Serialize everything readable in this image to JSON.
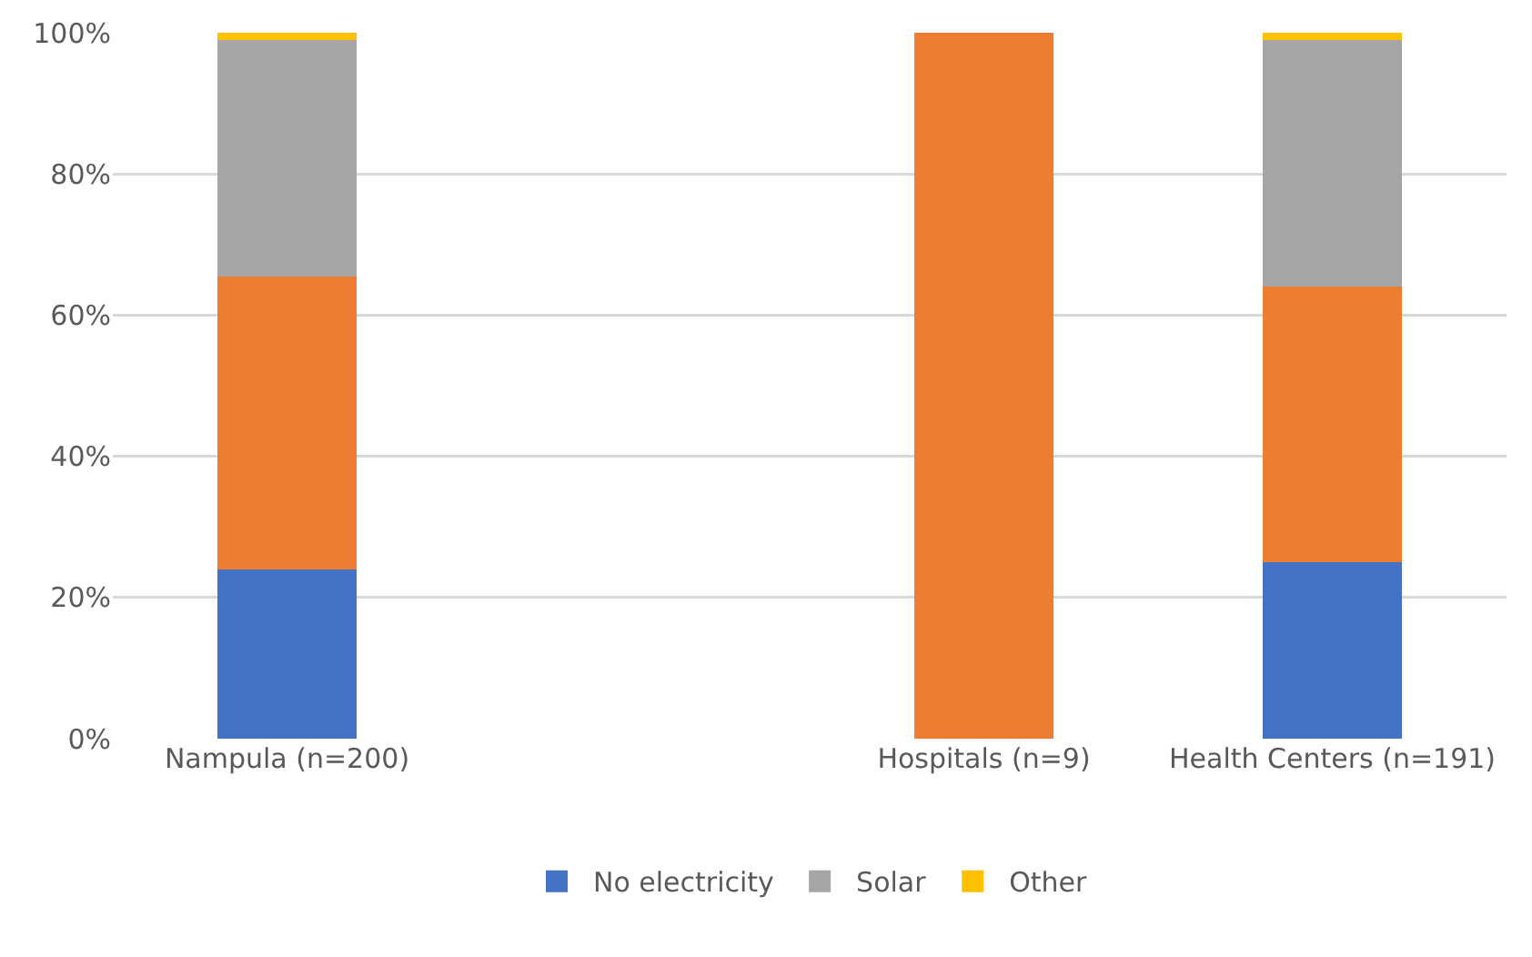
{
  "chart_data": {
    "type": "bar",
    "stacked": true,
    "categories": [
      "Nampula (n=200)",
      null,
      "Hospitals (n=9)",
      "Health Centers (n=191)"
    ],
    "series": [
      {
        "name": "No electricity",
        "color": "#4472c4",
        "values": [
          24,
          null,
          0,
          25
        ]
      },
      {
        "color": "#ed7d31",
        "values": [
          41.5,
          null,
          100,
          39
        ]
      },
      {
        "name": "Solar",
        "color": "#a5a5a5",
        "values": [
          33.5,
          null,
          0,
          35
        ]
      },
      {
        "name": "Other",
        "color": "#ffc000",
        "values": [
          1,
          null,
          0,
          1
        ]
      }
    ],
    "ylim": [
      0,
      100
    ],
    "yticks": [
      {
        "value": 0,
        "label": "0%"
      },
      {
        "value": 20,
        "label": "20%"
      },
      {
        "value": 40,
        "label": "40%"
      },
      {
        "value": 60,
        "label": "60%"
      },
      {
        "value": 80,
        "label": "80%"
      },
      {
        "value": 100,
        "label": "100%"
      }
    ],
    "grid": "y",
    "legend": "bottom"
  }
}
